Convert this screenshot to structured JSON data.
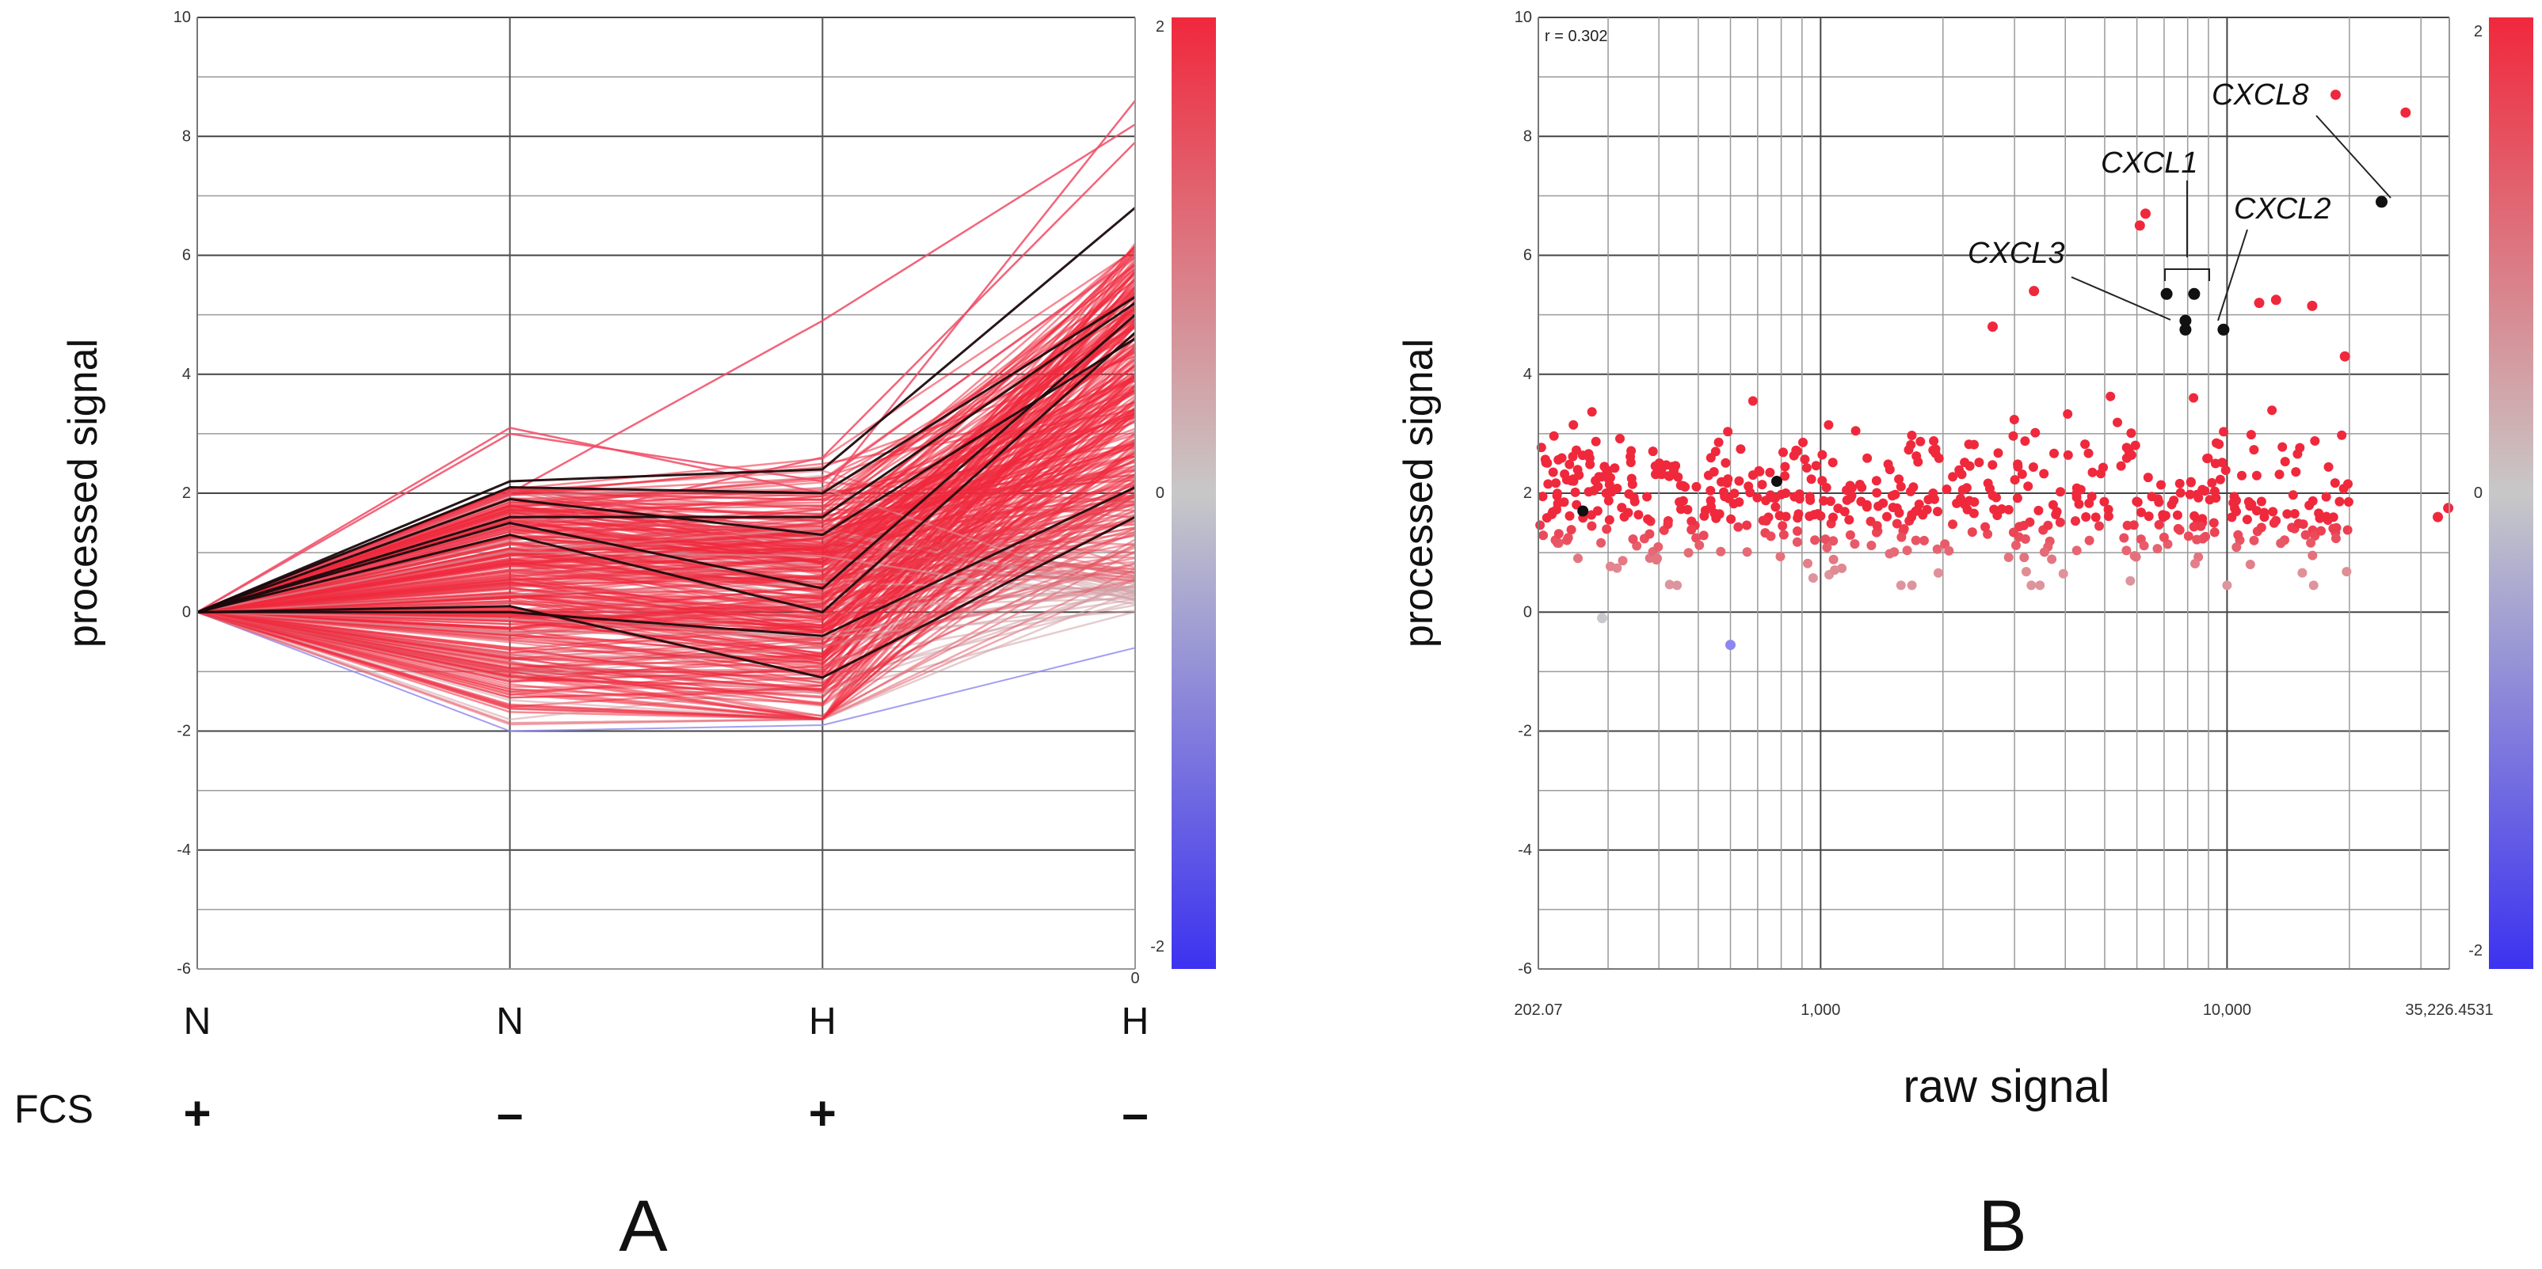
{
  "chart_data": [
    {
      "panel": "A",
      "type": "line",
      "title": "",
      "ylabel": "processed signal",
      "ylim": [
        -6,
        10
      ],
      "yticks": [
        10,
        8,
        6,
        4,
        2,
        0,
        -2,
        -4,
        -6
      ],
      "ytick_labels": [
        "10",
        "8",
        "6",
        "4",
        "2",
        "0",
        "-2",
        "-4",
        "-6"
      ],
      "categories": [
        "N",
        "N",
        "H",
        "H"
      ],
      "fcs_label": "FCS",
      "fcs": [
        "+",
        "–",
        "+",
        "–"
      ],
      "zero_tick_label": "0",
      "colorbar": {
        "max_label": "2",
        "mid_label": "0",
        "min_label": "-2",
        "colors": [
          "#f0283c",
          "#c8c8c8",
          "#3c32f0"
        ]
      },
      "series_highlight_black": [
        [
          0,
          2.2,
          2.4,
          6.8
        ],
        [
          0,
          2.1,
          2.0,
          5.3
        ],
        [
          0,
          1.6,
          1.6,
          5.2
        ],
        [
          0,
          1.5,
          0.4,
          5.0
        ],
        [
          0,
          1.3,
          0.0,
          4.7
        ],
        [
          0,
          0.0,
          -0.4,
          2.1
        ],
        [
          0,
          0.1,
          -1.1,
          1.6
        ],
        [
          0,
          1.9,
          1.3,
          4.6
        ]
      ],
      "series_red_outliers": [
        [
          0,
          3.1,
          2.0,
          8.6
        ],
        [
          0,
          2.0,
          4.9,
          8.2
        ],
        [
          0,
          1.4,
          2.6,
          7.9
        ],
        [
          0,
          3.0,
          2.2,
          6.0
        ]
      ],
      "series_blue": [
        [
          0,
          -2.0,
          -1.9,
          -0.6
        ]
      ],
      "bundle": {
        "n": 320,
        "seed": 11,
        "point2_range": [
          -1.9,
          2.1
        ],
        "point3_range": [
          -1.8,
          2.6
        ],
        "point4_range": [
          0.0,
          6.2
        ]
      }
    },
    {
      "panel": "B",
      "type": "scatter",
      "title": "",
      "xlabel": "raw signal",
      "ylabel": "processed signal",
      "x_scale": "log",
      "xlim": [
        202.07,
        35226.4531
      ],
      "xtick_labels": [
        "202.07",
        "1,000",
        "10,000",
        "35,226.4531"
      ],
      "xtick_values": [
        202.07,
        1000,
        10000,
        35226.4531
      ],
      "ylim": [
        -6,
        10
      ],
      "yticks": [
        10,
        8,
        6,
        4,
        2,
        0,
        -2,
        -4,
        -6
      ],
      "ytick_labels": [
        "10",
        "8",
        "6",
        "4",
        "2",
        "0",
        "-2",
        "-4",
        "-6"
      ],
      "correlation_label": "r = 0.302",
      "colorbar": {
        "max_label": "2",
        "mid_label": "0",
        "min_label": "-2",
        "colors": [
          "#f0283c",
          "#c8c8c8",
          "#3c32f0"
        ]
      },
      "highlighted_points": [
        {
          "gene": "CXCL8",
          "x": 24000,
          "y": 6.9
        },
        {
          "gene": "CXCL1",
          "x": 7100,
          "y": 5.35
        },
        {
          "gene": "CXCL1",
          "x": 8300,
          "y": 5.35
        },
        {
          "gene": "CXCL3",
          "x": 7900,
          "y": 4.9
        },
        {
          "gene": "CXCL3",
          "x": 7900,
          "y": 4.75
        },
        {
          "gene": "CXCL2",
          "x": 9800,
          "y": 4.75
        }
      ],
      "other_black_points": [
        {
          "x": 260,
          "y": 1.7
        },
        {
          "x": 780,
          "y": 2.2
        }
      ],
      "red_outliers": [
        {
          "x": 18500,
          "y": 8.7
        },
        {
          "x": 27500,
          "y": 8.4
        },
        {
          "x": 6300,
          "y": 6.7
        },
        {
          "x": 6100,
          "y": 6.5
        },
        {
          "x": 3350,
          "y": 5.4
        },
        {
          "x": 12000,
          "y": 5.2
        },
        {
          "x": 13200,
          "y": 5.25
        },
        {
          "x": 16200,
          "y": 5.15
        },
        {
          "x": 2650,
          "y": 4.8
        },
        {
          "x": 19500,
          "y": 4.3
        },
        {
          "x": 33000,
          "y": 1.6
        },
        {
          "x": 35000,
          "y": 1.75
        },
        {
          "x": 600,
          "y": -0.55
        },
        {
          "x": 290,
          "y": -0.1
        }
      ],
      "bulk": {
        "n": 560,
        "seed": 7,
        "x_range": [
          202.07,
          20000
        ],
        "y_center": 1.9,
        "y_spread": 0.85
      }
    }
  ],
  "gene_labels": [
    "CXCL8",
    "CXCL1",
    "CXCL3",
    "CXCL2"
  ]
}
